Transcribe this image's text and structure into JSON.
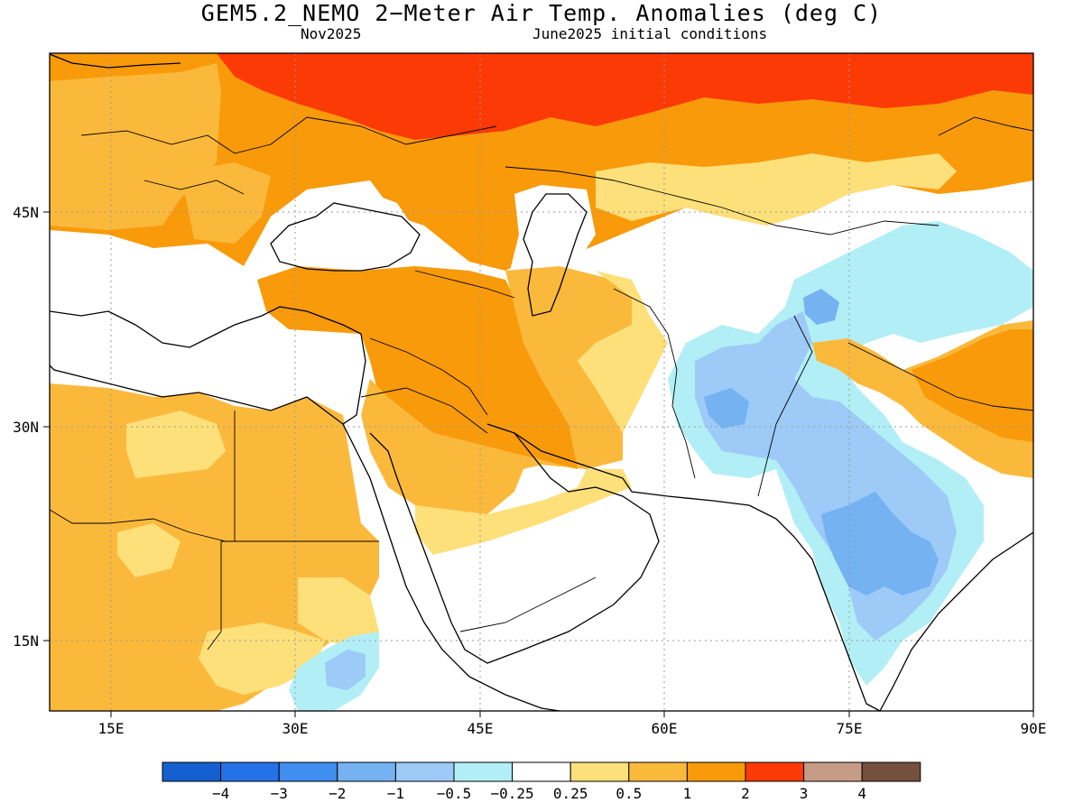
{
  "header": {
    "title": "GEM5.2_NEMO 2−Meter Air Temp. Anomalies (deg C)",
    "valid_month": "Nov2025",
    "initial_conditions": "June2025 initial conditions"
  },
  "map": {
    "region": "Middle East / South Asia",
    "x_axis_labels": [
      "15E",
      "30E",
      "45E",
      "60E",
      "75E",
      "90E"
    ],
    "y_axis_labels": [
      "45N",
      "30N",
      "15N"
    ],
    "lon_range": [
      10,
      90
    ],
    "lat_range": [
      10,
      56
    ],
    "grid": "dotted"
  },
  "legend": {
    "tick_labels": [
      "−4",
      "−3",
      "−2",
      "−1",
      "−0.5",
      "−0.25",
      "0.25",
      "0.5",
      "1",
      "2",
      "3",
      "4"
    ],
    "colors": [
      "#1560d0",
      "#2472e8",
      "#3f8ef0",
      "#74b2f2",
      "#9dcaf6",
      "#b2eef6",
      "#ffffff",
      "#fde07a",
      "#fbb93c",
      "#f89a0a",
      "#fb3a05",
      "#c79c86",
      "#75503e"
    ]
  }
}
